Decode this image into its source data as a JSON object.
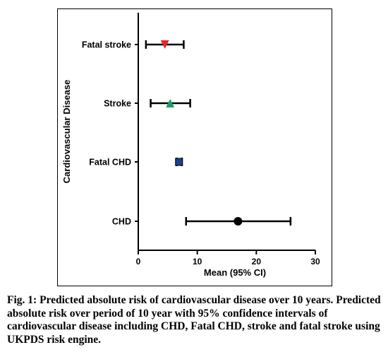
{
  "chart_data": {
    "type": "scatter",
    "subtype": "forest-plot",
    "orientation": "horizontal",
    "title": "",
    "xlabel": "Mean (95% CI)",
    "ylabel": "Cardiovascular Disease",
    "xlim": [
      0,
      30
    ],
    "xticks": [
      0,
      10,
      20,
      30
    ],
    "grid": false,
    "legend": "none",
    "categories": [
      "Fatal stroke",
      "Stroke",
      "Fatal CHD",
      "CHD"
    ],
    "points": [
      {
        "category": "Fatal stroke",
        "mean": 4.5,
        "lower": 1.3,
        "upper": 7.7,
        "marker": "triangle-down",
        "color": "#e8232a"
      },
      {
        "category": "Stroke",
        "mean": 5.4,
        "lower": 2.1,
        "upper": 8.8,
        "marker": "triangle-up",
        "color": "#1a9f6b"
      },
      {
        "category": "Fatal CHD",
        "mean": 6.9,
        "lower": 6.5,
        "upper": 7.4,
        "marker": "square",
        "color": "#1f3f94"
      },
      {
        "category": "CHD",
        "mean": 16.9,
        "lower": 8.1,
        "upper": 25.8,
        "marker": "circle",
        "color": "#000000"
      }
    ]
  },
  "caption": {
    "label": "Fig. 1:",
    "text": "Predicted absolute risk of cardiovascular disease over 10 years. Predicted absolute risk over period of 10 year with 95% confidence intervals of cardiovascular disease including CHD, Fatal CHD, stroke and fatal stroke using UKPDS risk engine."
  }
}
